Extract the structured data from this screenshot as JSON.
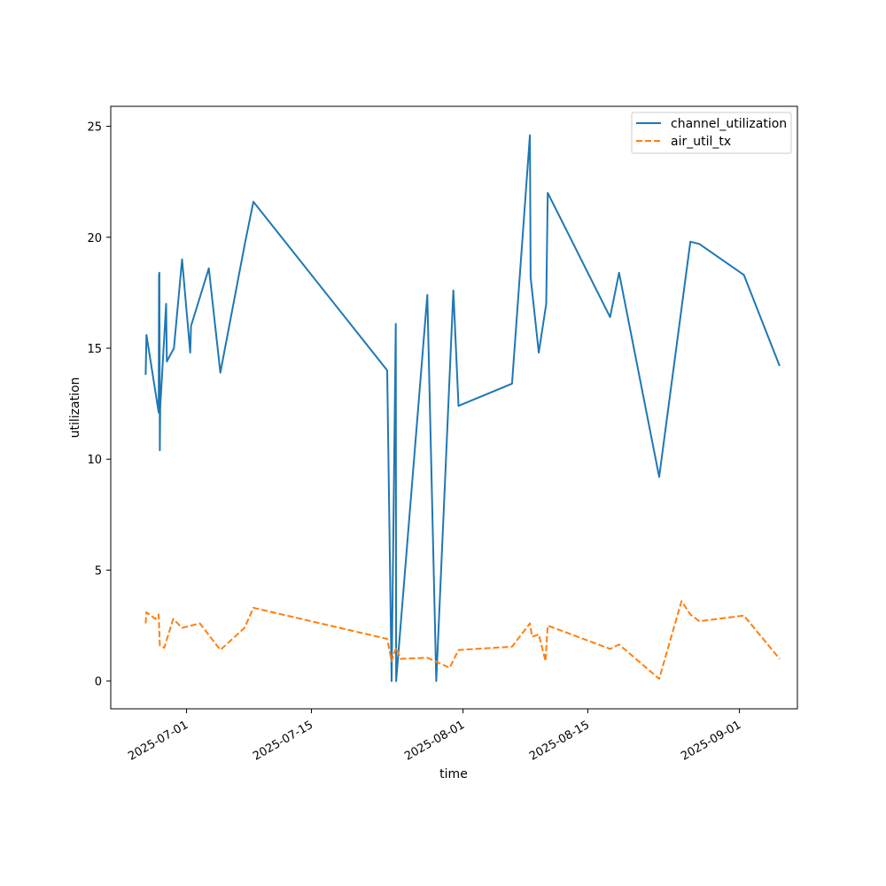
{
  "chart_data": {
    "type": "line",
    "title": "",
    "xlabel": "time",
    "ylabel": "utilization",
    "x_ticks": [
      "2025-07-01",
      "2025-07-15",
      "2025-08-01",
      "2025-08-15",
      "2025-09-01"
    ],
    "y_ticks": [
      0,
      5,
      10,
      15,
      20,
      25
    ],
    "xlim": [
      "2025-06-22T12:00",
      "2025-09-07T12:00"
    ],
    "ylim": [
      -1.25,
      25.9
    ],
    "grid": false,
    "legend": "top-right",
    "series": [
      {
        "name": "channel_utilization",
        "color": "#1f77b4",
        "style": "solid",
        "points": [
          [
            "2025-06-26T10:00",
            13.8
          ],
          [
            "2025-06-26T12:00",
            15.6
          ],
          [
            "2025-06-27T21:00",
            12.1
          ],
          [
            "2025-06-27T22:00",
            18.3
          ],
          [
            "2025-06-27T23:00",
            18.4
          ],
          [
            "2025-06-28T00:00",
            10.4
          ],
          [
            "2025-06-28T01:00",
            12.3
          ],
          [
            "2025-06-28T17:00",
            17.0
          ],
          [
            "2025-06-28T19:00",
            14.4
          ],
          [
            "2025-06-29T14:00",
            15.0
          ],
          [
            "2025-06-30T12:00",
            19.0
          ],
          [
            "2025-07-01T10:00",
            14.8
          ],
          [
            "2025-07-01T12:00",
            16.0
          ],
          [
            "2025-07-03T12:00",
            18.6
          ],
          [
            "2025-07-04T19:00",
            13.9
          ],
          [
            "2025-07-07T14:00",
            19.8
          ],
          [
            "2025-07-08T12:00",
            21.6
          ],
          [
            "2025-07-23T12:00",
            14.0
          ],
          [
            "2025-07-24T00:00",
            0.0
          ],
          [
            "2025-07-24T11:00",
            16.1
          ],
          [
            "2025-07-24T12:00",
            0.0
          ],
          [
            "2025-07-28T00:00",
            17.4
          ],
          [
            "2025-07-29T00:00",
            0.0
          ],
          [
            "2025-07-30T22:00",
            17.6
          ],
          [
            "2025-07-31T12:00",
            12.4
          ],
          [
            "2025-08-06T12:00",
            13.4
          ],
          [
            "2025-08-08T12:00",
            24.6
          ],
          [
            "2025-08-08T14:00",
            18.2
          ],
          [
            "2025-08-09T12:00",
            14.8
          ],
          [
            "2025-08-10T08:00",
            17.0
          ],
          [
            "2025-08-10T12:00",
            22.0
          ],
          [
            "2025-08-17T12:00",
            16.4
          ],
          [
            "2025-08-18T12:00",
            18.4
          ],
          [
            "2025-08-23T00:00",
            9.2
          ],
          [
            "2025-08-26T12:00",
            19.8
          ],
          [
            "2025-08-27T12:00",
            19.7
          ],
          [
            "2025-09-01T12:00",
            18.3
          ],
          [
            "2025-09-05T12:00",
            14.2
          ]
        ]
      },
      {
        "name": "air_util_tx",
        "color": "#ff7f0e",
        "style": "dashed",
        "points": [
          [
            "2025-06-26T10:00",
            2.6
          ],
          [
            "2025-06-26T12:00",
            3.1
          ],
          [
            "2025-06-27T12:00",
            2.8
          ],
          [
            "2025-06-27T21:00",
            3.0
          ],
          [
            "2025-06-28T00:00",
            1.6
          ],
          [
            "2025-06-28T12:00",
            1.5
          ],
          [
            "2025-06-29T12:00",
            2.8
          ],
          [
            "2025-06-30T12:00",
            2.4
          ],
          [
            "2025-07-02T12:00",
            2.6
          ],
          [
            "2025-07-04T19:00",
            1.4
          ],
          [
            "2025-07-07T12:00",
            2.4
          ],
          [
            "2025-07-08T12:00",
            3.3
          ],
          [
            "2025-07-23T12:00",
            1.9
          ],
          [
            "2025-07-24T00:00",
            0.9
          ],
          [
            "2025-07-24T12:00",
            1.5
          ],
          [
            "2025-07-25T00:00",
            1.0
          ],
          [
            "2025-07-28T00:00",
            1.05
          ],
          [
            "2025-07-30T12:00",
            0.6
          ],
          [
            "2025-07-31T12:00",
            1.4
          ],
          [
            "2025-08-06T12:00",
            1.55
          ],
          [
            "2025-08-08T12:00",
            2.6
          ],
          [
            "2025-08-08T18:00",
            2.0
          ],
          [
            "2025-08-09T12:00",
            2.1
          ],
          [
            "2025-08-10T06:00",
            0.9
          ],
          [
            "2025-08-10T12:00",
            2.5
          ],
          [
            "2025-08-17T12:00",
            1.45
          ],
          [
            "2025-08-18T12:00",
            1.65
          ],
          [
            "2025-08-23T00:00",
            0.1
          ],
          [
            "2025-08-25T12:00",
            3.6
          ],
          [
            "2025-08-26T12:00",
            3.0
          ],
          [
            "2025-08-27T12:00",
            2.7
          ],
          [
            "2025-09-01T12:00",
            2.95
          ],
          [
            "2025-09-05T12:00",
            1.0
          ]
        ]
      }
    ]
  }
}
